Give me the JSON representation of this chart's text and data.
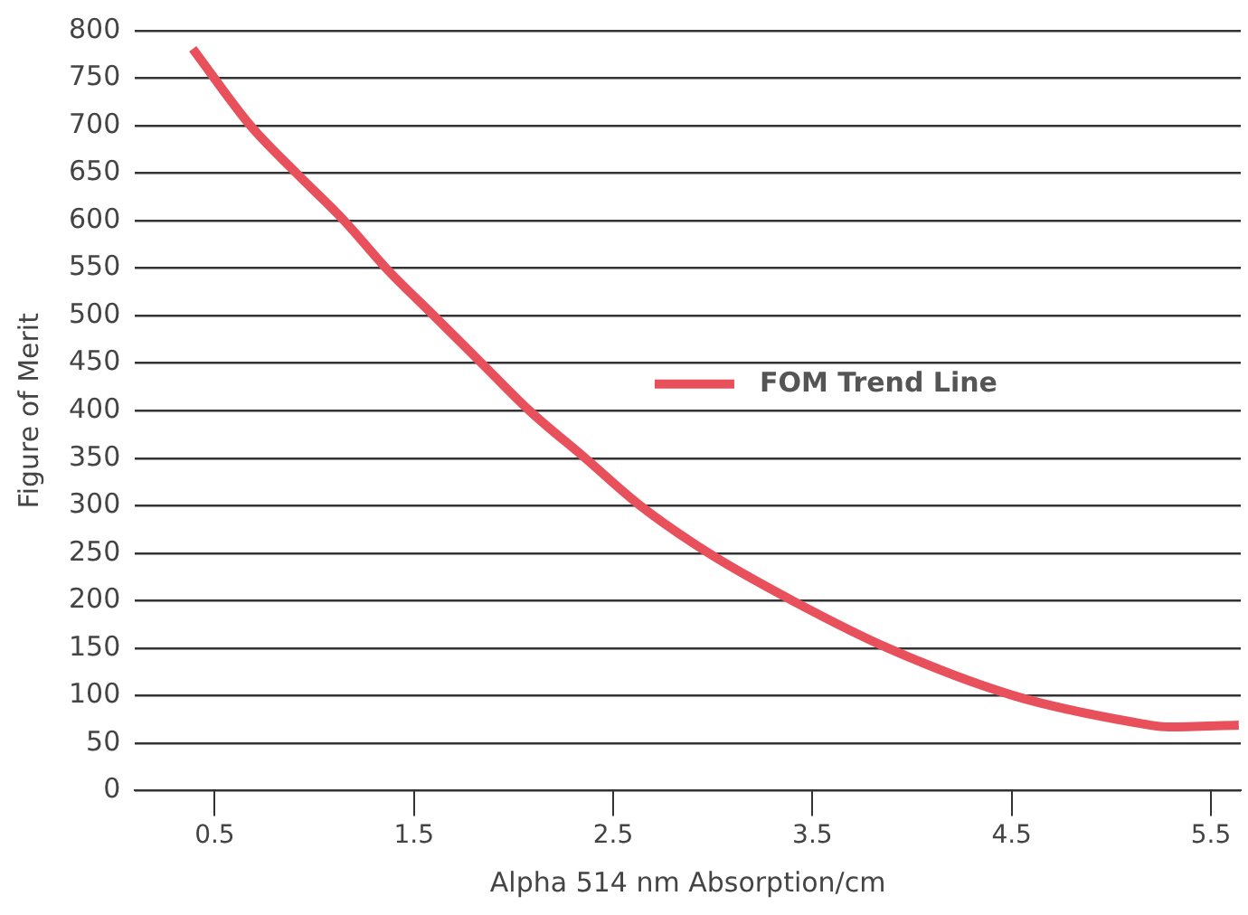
{
  "chart_data": {
    "type": "line",
    "xlabel": "Alpha 514 nm Absorption/cm",
    "ylabel": "Figure of Merit",
    "series": [
      {
        "name": "FOM Trend Line",
        "color": "#e8505b",
        "x": [
          0.39,
          0.68,
          0.91,
          1.15,
          1.36,
          1.6,
          1.84,
          2.08,
          2.36,
          2.63,
          2.98,
          3.4,
          3.88,
          4.51,
          5.11,
          5.29,
          5.64
        ],
        "values": [
          781,
          700,
          650,
          600,
          550,
          500,
          450,
          400,
          350,
          301,
          250,
          200,
          150,
          100,
          72,
          67,
          69
        ]
      }
    ],
    "xlim": [
      0.1,
      5.65
    ],
    "xticks": [
      0.5,
      1.5,
      2.5,
      3.5,
      4.5,
      5.5
    ],
    "ylim": [
      0,
      800
    ],
    "yticks": [
      0,
      50,
      100,
      150,
      200,
      250,
      300,
      350,
      400,
      450,
      500,
      550,
      600,
      650,
      700,
      750,
      800
    ],
    "grid": "y",
    "legend": "right",
    "marker": "none",
    "line_style": "solid"
  }
}
